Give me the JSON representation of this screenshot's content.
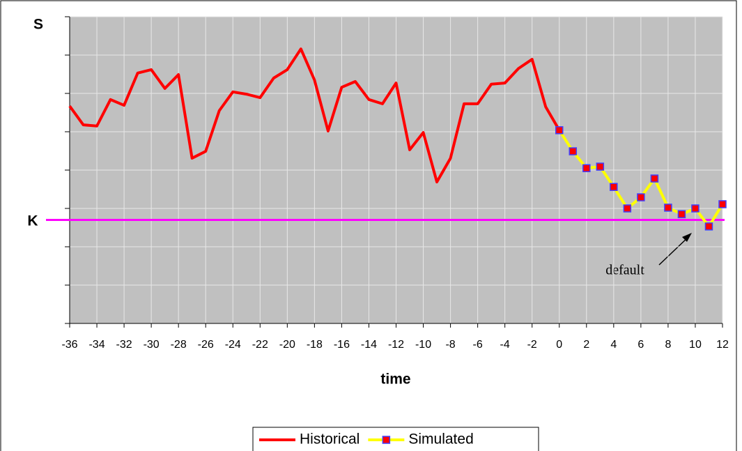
{
  "chart_data": {
    "type": "line",
    "y_label": "S",
    "x_label": "time",
    "threshold_label": "K",
    "threshold": 2.7,
    "threshold_color": "#ff00ff",
    "annotation": "default",
    "series": [
      {
        "name": "Historical",
        "color": "#ff0000",
        "x": [
          -36,
          -35,
          -34,
          -33,
          -32,
          -31,
          -30,
          -29,
          -28,
          -27,
          -26,
          -25,
          -24,
          -23,
          -22,
          -21,
          -20,
          -19,
          -18,
          -17,
          -16,
          -15,
          -14,
          -13,
          -12,
          -11,
          -10,
          -9,
          -8,
          -7,
          -6,
          -5,
          -4,
          -3,
          -2,
          -1,
          0
        ],
        "values": [
          5.67,
          5.18,
          5.15,
          5.84,
          5.69,
          6.53,
          6.62,
          6.13,
          6.49,
          4.31,
          4.49,
          5.55,
          6.04,
          5.98,
          5.89,
          6.4,
          6.62,
          7.16,
          6.35,
          5.02,
          6.16,
          6.31,
          5.84,
          5.73,
          6.27,
          4.53,
          4.98,
          3.69,
          4.31,
          5.73,
          5.73,
          6.24,
          6.27,
          6.65,
          6.89,
          5.65,
          5.04
        ]
      },
      {
        "name": "Simulated",
        "color": "#ffff00",
        "marker_color": "#ff0000",
        "marker_edge": "#4040ff",
        "x": [
          0,
          1,
          2,
          3,
          4,
          5,
          6,
          7,
          8,
          9,
          10,
          11,
          12
        ],
        "values": [
          5.04,
          4.49,
          4.05,
          4.09,
          3.56,
          3.0,
          3.29,
          3.78,
          3.02,
          2.85,
          3.0,
          2.53,
          3.11
        ]
      }
    ],
    "xlim": [
      -36,
      12
    ],
    "xticks": [
      -36,
      -34,
      -32,
      -30,
      -28,
      -26,
      -24,
      -22,
      -20,
      -18,
      -16,
      -14,
      -12,
      -10,
      -8,
      -6,
      -4,
      -2,
      0,
      2,
      4,
      6,
      8,
      10,
      12
    ],
    "ylim": [
      0,
      8
    ],
    "yticks": [
      0,
      1,
      2,
      3,
      4,
      5,
      6,
      7,
      8
    ],
    "grid": true,
    "legend": "bottom"
  }
}
